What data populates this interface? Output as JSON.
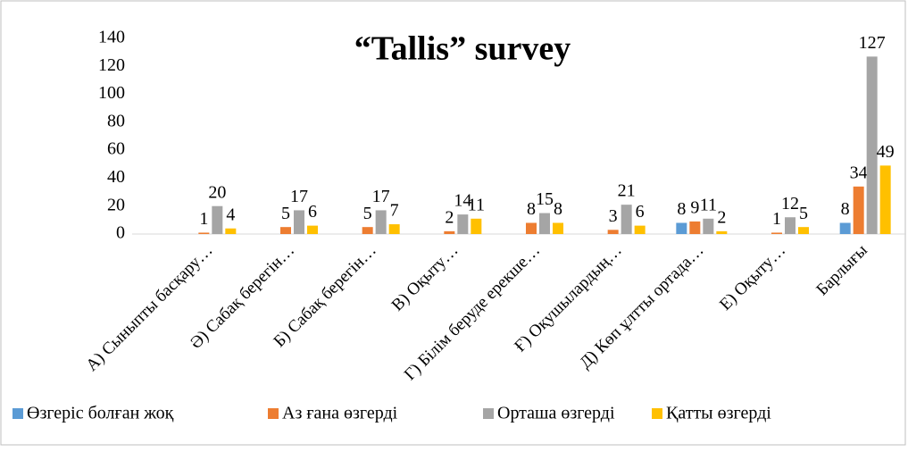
{
  "chart_data": {
    "type": "bar",
    "title": "“Tallis” survey",
    "categories": [
      "А) Сыныпты басқару…",
      "Ә) Сабақ берегін…",
      "Б) Сабақ берегін…",
      "В) Оқыту…",
      "Г) Білім беруде ерекше…",
      "Ғ) Оқушылардың…",
      "Д) Көп ұлтты ортада…",
      "Е) Оқыту…",
      "Барлығы"
    ],
    "series": [
      {
        "name": "Өзгеріс болған жоқ",
        "color": "#5b9bd5",
        "values": [
          null,
          null,
          null,
          null,
          null,
          null,
          8,
          null,
          8
        ]
      },
      {
        "name": "Аз ғана өзгерді",
        "color": "#ed7d31",
        "values": [
          1,
          5,
          5,
          2,
          8,
          3,
          9,
          1,
          34
        ]
      },
      {
        "name": "Орташа өзгерді",
        "color": "#a5a5a5",
        "values": [
          20,
          17,
          17,
          14,
          15,
          21,
          11,
          12,
          127
        ]
      },
      {
        "name": "Қатты өзгерді",
        "color": "#ffc000",
        "values": [
          4,
          6,
          7,
          11,
          8,
          6,
          2,
          5,
          49
        ]
      }
    ],
    "ylim": [
      0,
      140
    ],
    "yticks": [
      0,
      20,
      40,
      60,
      80,
      100,
      120,
      140
    ],
    "grid": false,
    "legend": "bottom"
  }
}
